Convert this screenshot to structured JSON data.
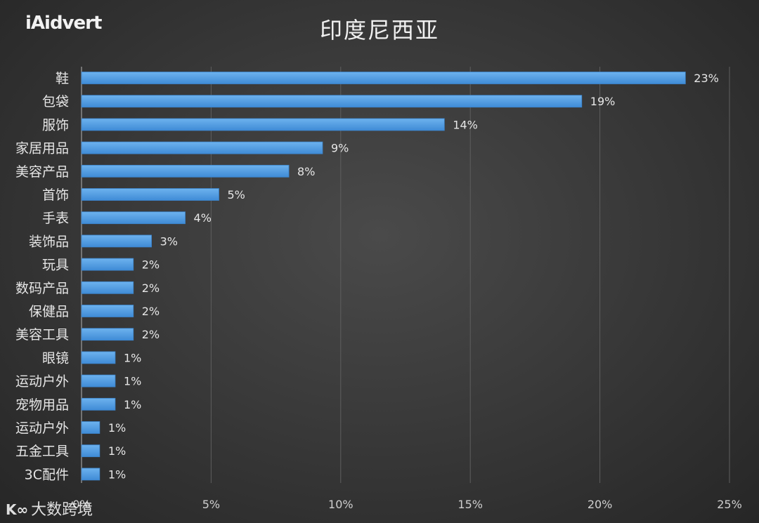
{
  "logo_text": "iAidvert",
  "watermark": {
    "glyph": "K∞",
    "text": "大数跨境"
  },
  "colors": {
    "bar": "#5aa3e6",
    "bar_edge": "#3b84cc",
    "grid": "#5e5e5e",
    "text": "#e6e6e6",
    "axis": "#cfcfcf"
  },
  "chart_data": {
    "type": "bar",
    "orientation": "horizontal",
    "title": "印度尼西亚",
    "categories": [
      "鞋",
      "包袋",
      "服饰",
      "家居用品",
      "美容产品",
      "首饰",
      "手表",
      "装饰品",
      "玩具",
      "数码产品",
      "保健品",
      "美容工具",
      "眼镜",
      "运动户外",
      "宠物用品",
      "运动户外",
      "五金工具",
      "3C配件"
    ],
    "values": [
      23.3,
      19.3,
      14.0,
      9.3,
      8.0,
      5.3,
      4.0,
      2.7,
      2.0,
      2.0,
      2.0,
      2.0,
      1.3,
      1.3,
      1.3,
      0.7,
      0.7,
      0.7
    ],
    "data_labels": [
      "23%",
      "19%",
      "14%",
      "9%",
      "8%",
      "5%",
      "4%",
      "3%",
      "2%",
      "2%",
      "2%",
      "2%",
      "1%",
      "1%",
      "1%",
      "1%",
      "1%",
      "1%"
    ],
    "x_ticks": [
      0,
      5,
      10,
      15,
      20,
      25
    ],
    "x_tick_labels": [
      "0%",
      "5%",
      "10%",
      "15%",
      "20%",
      "25%"
    ],
    "xlim": [
      0,
      25
    ],
    "grid": "vertical",
    "legend": "none"
  }
}
